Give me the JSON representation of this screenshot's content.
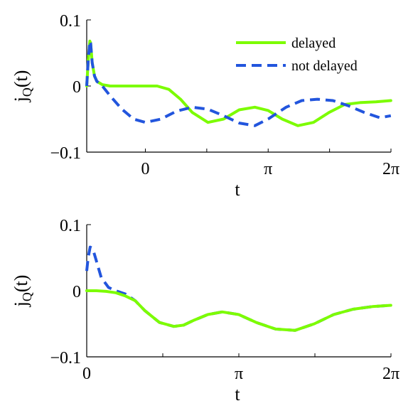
{
  "chart_data": [
    {
      "type": "line",
      "xlim": [
        -1.5,
        6.283
      ],
      "ylim": [
        -0.1,
        0.1
      ],
      "xticks": [
        0,
        3.1416,
        6.2832
      ],
      "xtick_labels": [
        "0",
        "π",
        "2π"
      ],
      "yticks": [
        -0.1,
        0,
        0.1
      ],
      "ytick_labels": [
        "−0.1",
        "0",
        "0.1"
      ],
      "xlabel": "t",
      "ylabel": "jQ(t)",
      "legend_position": "top-right",
      "series": [
        {
          "name": "delayed",
          "color": "#7CFC00",
          "style": "solid",
          "x": [
            -1.5,
            -1.46,
            -1.42,
            -1.4,
            -1.36,
            -1.3,
            -1.24,
            -1.1,
            -0.9,
            -0.5,
            0.0,
            0.3,
            0.6,
            0.9,
            1.2,
            1.6,
            2.0,
            2.4,
            2.8,
            3.14,
            3.5,
            3.9,
            4.3,
            4.7,
            5.1,
            5.5,
            5.9,
            6.28
          ],
          "y": [
            0.0,
            0.04,
            0.068,
            0.065,
            0.035,
            0.015,
            0.007,
            0.002,
            0.0,
            0.0,
            0.0,
            0.0,
            -0.005,
            -0.02,
            -0.04,
            -0.055,
            -0.05,
            -0.036,
            -0.032,
            -0.037,
            -0.05,
            -0.06,
            -0.055,
            -0.04,
            -0.028,
            -0.025,
            -0.024,
            -0.022
          ]
        },
        {
          "name": "not delayed",
          "color": "#2255DD",
          "style": "dashed",
          "x": [
            -1.5,
            -1.46,
            -1.42,
            -1.4,
            -1.36,
            -1.3,
            -1.24,
            -1.1,
            -0.9,
            -0.6,
            -0.3,
            0.0,
            0.4,
            0.8,
            1.2,
            1.6,
            2.0,
            2.4,
            2.8,
            3.14,
            3.6,
            4.0,
            4.4,
            4.8,
            5.2,
            5.6,
            6.0,
            6.28
          ],
          "y": [
            0.0,
            0.04,
            0.068,
            0.065,
            0.035,
            0.015,
            0.007,
            0.0,
            -0.015,
            -0.035,
            -0.05,
            -0.055,
            -0.05,
            -0.038,
            -0.032,
            -0.035,
            -0.045,
            -0.056,
            -0.06,
            -0.05,
            -0.032,
            -0.022,
            -0.02,
            -0.022,
            -0.03,
            -0.04,
            -0.048,
            -0.045
          ]
        }
      ]
    },
    {
      "type": "line",
      "xlim": [
        0,
        6.283
      ],
      "ylim": [
        -0.1,
        0.1
      ],
      "xticks": [
        0,
        3.1416,
        6.2832
      ],
      "xtick_labels": [
        "0",
        "π",
        "2π"
      ],
      "yticks": [
        -0.1,
        0,
        0.1
      ],
      "ytick_labels": [
        "−0.1",
        "0",
        "0.1"
      ],
      "xlabel": "t",
      "ylabel": "jQ(t)",
      "series": [
        {
          "name": "not delayed",
          "color": "#2255DD",
          "style": "dashed",
          "x": [
            0.0,
            0.03,
            0.07,
            0.1,
            0.14,
            0.2,
            0.3,
            0.45,
            0.6,
            0.8,
            1.0,
            1.2,
            1.5,
            1.8,
            2.0,
            2.2,
            2.5,
            2.8,
            3.14,
            3.5,
            3.9,
            4.3,
            4.7,
            5.1,
            5.5,
            5.9,
            6.28
          ],
          "y": [
            0.03,
            0.05,
            0.066,
            0.065,
            0.06,
            0.045,
            0.02,
            0.005,
            0.0,
            -0.005,
            -0.015,
            -0.03,
            -0.048,
            -0.054,
            -0.052,
            -0.045,
            -0.036,
            -0.032,
            -0.036,
            -0.048,
            -0.058,
            -0.06,
            -0.05,
            -0.036,
            -0.028,
            -0.024,
            -0.022
          ]
        },
        {
          "name": "delayed",
          "color": "#7CFC00",
          "style": "solid",
          "x": [
            0.0,
            0.2,
            0.4,
            0.6,
            0.8,
            1.0,
            1.2,
            1.5,
            1.8,
            2.0,
            2.2,
            2.5,
            2.8,
            3.14,
            3.5,
            3.9,
            4.3,
            4.7,
            5.1,
            5.5,
            5.9,
            6.28
          ],
          "y": [
            0.0,
            0.0,
            -0.001,
            -0.003,
            -0.008,
            -0.015,
            -0.03,
            -0.048,
            -0.054,
            -0.052,
            -0.045,
            -0.036,
            -0.032,
            -0.036,
            -0.048,
            -0.058,
            -0.06,
            -0.05,
            -0.036,
            -0.028,
            -0.024,
            -0.022
          ]
        }
      ]
    }
  ]
}
